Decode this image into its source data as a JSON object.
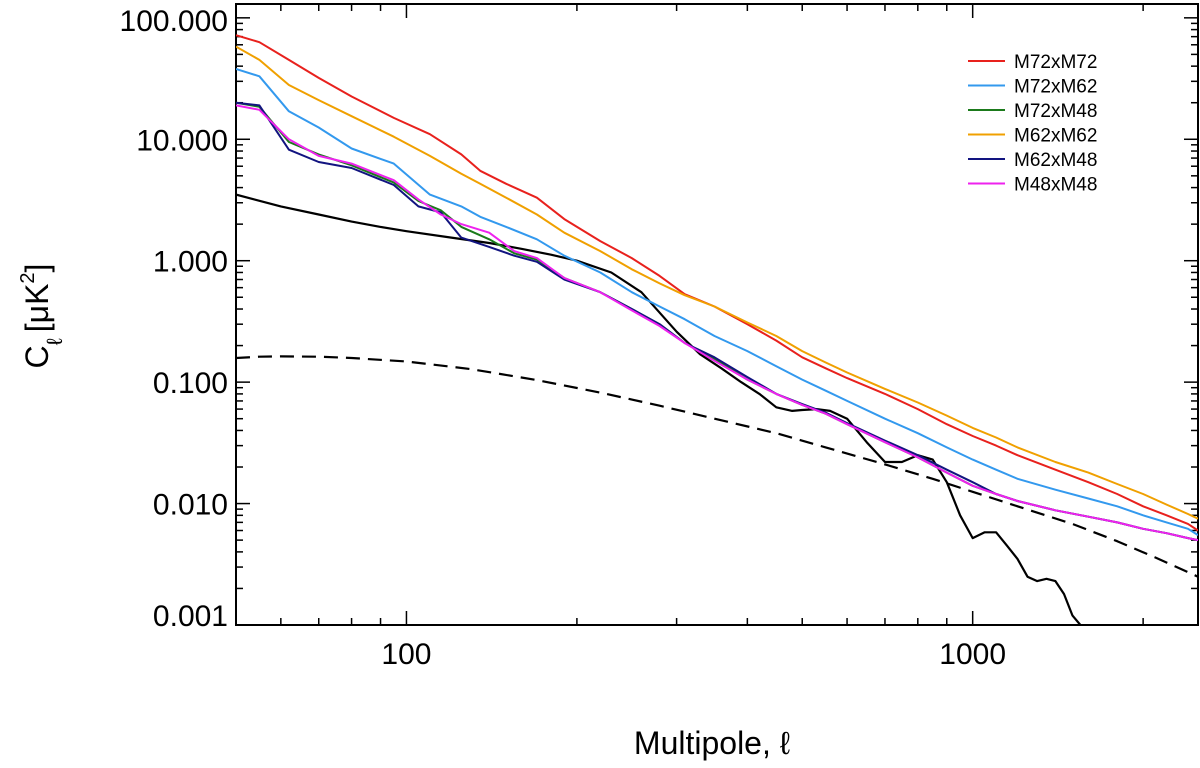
{
  "chart_data": {
    "type": "line",
    "xscale": "log",
    "yscale": "log",
    "xlim": [
      50,
      2500
    ],
    "ylim": [
      0.001,
      130
    ],
    "xlabel": "Multipole, ℓ",
    "ylabel": "C",
    "ylabel_sub": "ℓ",
    "ylabel_units": "[μK",
    "ylabel_sup": "2",
    "ylabel_close": "]",
    "x_ticks": [
      {
        "value": 100,
        "label": "100"
      },
      {
        "value": 1000,
        "label": "1000"
      }
    ],
    "y_ticks": [
      {
        "value": 100,
        "label": "100.000"
      },
      {
        "value": 10,
        "label": "10.000"
      },
      {
        "value": 1,
        "label": "1.000"
      },
      {
        "value": 0.1,
        "label": "0.100"
      },
      {
        "value": 0.01,
        "label": "0.010"
      },
      {
        "value": 0.001,
        "label": "0.001"
      }
    ],
    "legend_position": "top-right",
    "series": [
      {
        "name": "M72xM72",
        "color": "#e8211d",
        "style": "solid",
        "legend": true,
        "x": [
          50,
          55,
          62,
          70,
          80,
          95,
          110,
          125,
          135,
          150,
          170,
          190,
          220,
          250,
          280,
          310,
          350,
          400,
          450,
          500,
          550,
          600,
          700,
          800,
          900,
          1000,
          1100,
          1200,
          1400,
          1600,
          1800,
          2000,
          2200,
          2400,
          2500
        ],
        "y": [
          72,
          63,
          45,
          32,
          22.5,
          15,
          11,
          7.5,
          5.5,
          4.3,
          3.3,
          2.2,
          1.45,
          1.05,
          0.75,
          0.53,
          0.42,
          0.3,
          0.22,
          0.16,
          0.13,
          0.108,
          0.08,
          0.06,
          0.045,
          0.036,
          0.03,
          0.025,
          0.019,
          0.015,
          0.012,
          0.0095,
          0.008,
          0.0068,
          0.006
        ]
      },
      {
        "name": "M72xM62",
        "color": "#3399ee",
        "style": "solid",
        "legend": true,
        "x": [
          50,
          55,
          62,
          70,
          80,
          95,
          110,
          125,
          135,
          150,
          170,
          190,
          220,
          250,
          280,
          310,
          350,
          400,
          450,
          500,
          550,
          600,
          700,
          800,
          900,
          1000,
          1100,
          1200,
          1400,
          1600,
          1800,
          2000,
          2200,
          2400,
          2500
        ],
        "y": [
          38,
          33,
          17,
          12.5,
          8.4,
          6.3,
          3.5,
          2.8,
          2.3,
          1.9,
          1.5,
          1.1,
          0.8,
          0.55,
          0.42,
          0.33,
          0.24,
          0.18,
          0.135,
          0.105,
          0.085,
          0.07,
          0.05,
          0.038,
          0.029,
          0.023,
          0.019,
          0.016,
          0.013,
          0.011,
          0.0095,
          0.008,
          0.007,
          0.0062,
          0.0055
        ]
      },
      {
        "name": "M72xM48",
        "color": "#1b7a1b",
        "style": "solid",
        "legend": true,
        "x": [
          50,
          55,
          62,
          70,
          80,
          95,
          105,
          115,
          125,
          140,
          155,
          170,
          190,
          220,
          250,
          280,
          310,
          350,
          400,
          450,
          500,
          550,
          600,
          700,
          800,
          900,
          1000,
          1100,
          1200,
          1400,
          1600,
          1800,
          2000,
          2200,
          2400,
          2500
        ],
        "y": [
          20,
          18.5,
          9.5,
          7.5,
          6.1,
          4.4,
          3.1,
          2.6,
          1.9,
          1.5,
          1.15,
          1.02,
          0.72,
          0.55,
          0.4,
          0.3,
          0.21,
          0.155,
          0.105,
          0.08,
          0.065,
          0.055,
          0.045,
          0.032,
          0.024,
          0.018,
          0.014,
          0.012,
          0.0105,
          0.0088,
          0.0078,
          0.007,
          0.0062,
          0.0057,
          0.0052,
          0.005
        ]
      },
      {
        "name": "M62xM62",
        "color": "#f0a000",
        "style": "solid",
        "legend": true,
        "x": [
          50,
          55,
          62,
          70,
          80,
          95,
          110,
          125,
          135,
          150,
          170,
          190,
          220,
          250,
          280,
          310,
          350,
          400,
          450,
          500,
          550,
          600,
          700,
          800,
          900,
          1000,
          1100,
          1200,
          1400,
          1600,
          1800,
          2000,
          2200,
          2400,
          2500
        ],
        "y": [
          58,
          45,
          28,
          21,
          15.5,
          10.5,
          7.3,
          5.2,
          4.3,
          3.3,
          2.4,
          1.7,
          1.2,
          0.85,
          0.65,
          0.52,
          0.42,
          0.31,
          0.24,
          0.18,
          0.145,
          0.12,
          0.088,
          0.068,
          0.053,
          0.042,
          0.035,
          0.029,
          0.022,
          0.018,
          0.0145,
          0.012,
          0.0098,
          0.0082,
          0.0075
        ]
      },
      {
        "name": "M62xM48",
        "color": "#121480",
        "style": "solid",
        "legend": true,
        "x": [
          50,
          55,
          62,
          70,
          80,
          95,
          105,
          115,
          125,
          140,
          155,
          170,
          190,
          220,
          250,
          280,
          310,
          350,
          400,
          450,
          500,
          550,
          600,
          700,
          800,
          900,
          1000,
          1100,
          1200,
          1400,
          1600,
          1800,
          2000,
          2200,
          2400,
          2500
        ],
        "y": [
          20,
          19,
          8.2,
          6.5,
          5.8,
          4.2,
          2.8,
          2.5,
          1.55,
          1.3,
          1.1,
          0.98,
          0.7,
          0.55,
          0.4,
          0.3,
          0.21,
          0.16,
          0.11,
          0.08,
          0.066,
          0.056,
          0.046,
          0.033,
          0.025,
          0.019,
          0.015,
          0.012,
          0.0105,
          0.0088,
          0.0078,
          0.007,
          0.0062,
          0.0057,
          0.0052,
          0.005
        ]
      },
      {
        "name": "M48xM48",
        "color": "#ee22ee",
        "style": "solid",
        "legend": true,
        "x": [
          50,
          55,
          62,
          70,
          80,
          95,
          105,
          115,
          125,
          140,
          155,
          170,
          190,
          220,
          250,
          280,
          310,
          350,
          400,
          450,
          500,
          550,
          600,
          700,
          800,
          900,
          1000,
          1100,
          1200,
          1400,
          1600,
          1800,
          2000,
          2200,
          2400,
          2500
        ],
        "y": [
          19,
          17.5,
          10,
          7.3,
          6.3,
          4.6,
          3.2,
          2.4,
          2.0,
          1.7,
          1.2,
          1.05,
          0.72,
          0.55,
          0.39,
          0.29,
          0.21,
          0.15,
          0.105,
          0.08,
          0.065,
          0.055,
          0.045,
          0.032,
          0.024,
          0.018,
          0.014,
          0.012,
          0.0105,
          0.0088,
          0.0078,
          0.007,
          0.0062,
          0.0057,
          0.0052,
          0.005
        ]
      },
      {
        "name": "model",
        "color": "#000000",
        "style": "solid",
        "legend": false,
        "x": [
          50,
          60,
          70,
          80,
          90,
          100,
          120,
          140,
          160,
          180,
          200,
          230,
          260,
          300,
          330,
          360,
          390,
          420,
          450,
          480,
          500,
          530,
          560,
          600,
          650,
          700,
          750,
          800,
          850,
          900,
          950,
          1000,
          1050,
          1100,
          1150,
          1200,
          1250,
          1300,
          1350,
          1400,
          1450,
          1500,
          1550,
          1600
        ],
        "y": [
          3.5,
          2.8,
          2.4,
          2.1,
          1.9,
          1.75,
          1.55,
          1.4,
          1.25,
          1.12,
          1.0,
          0.8,
          0.55,
          0.26,
          0.17,
          0.13,
          0.1,
          0.08,
          0.062,
          0.058,
          0.059,
          0.06,
          0.058,
          0.05,
          0.032,
          0.022,
          0.022,
          0.025,
          0.023,
          0.015,
          0.008,
          0.0052,
          0.0058,
          0.0058,
          0.0045,
          0.0035,
          0.0025,
          0.0023,
          0.0024,
          0.0023,
          0.0018,
          0.0012,
          0.001,
          0.0009
        ]
      },
      {
        "name": "model-dashed",
        "color": "#000000",
        "style": "dashed",
        "legend": false,
        "x": [
          50,
          55,
          60,
          70,
          80,
          100,
          130,
          170,
          220,
          280,
          350,
          450,
          550,
          700,
          850,
          1000,
          1200,
          1500,
          1800,
          2100,
          2500
        ],
        "y": [
          0.158,
          0.162,
          0.163,
          0.162,
          0.158,
          0.148,
          0.128,
          0.104,
          0.082,
          0.064,
          0.05,
          0.038,
          0.029,
          0.021,
          0.016,
          0.0125,
          0.0095,
          0.0068,
          0.0049,
          0.0036,
          0.0025
        ]
      }
    ]
  }
}
